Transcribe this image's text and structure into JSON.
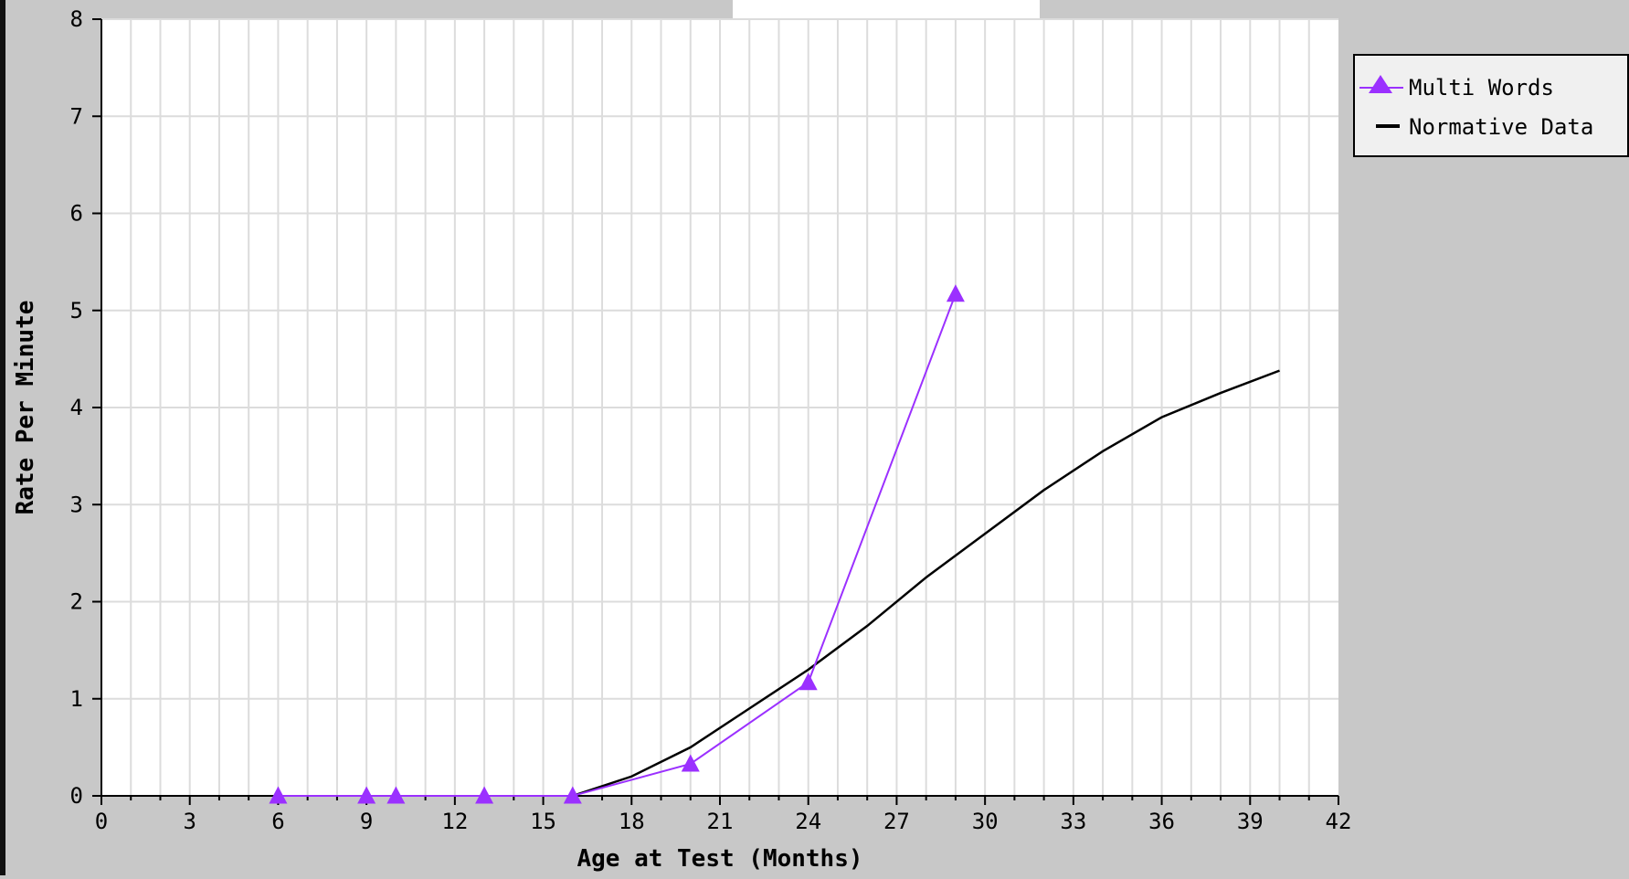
{
  "chart_data": {
    "type": "line",
    "title": "",
    "xlabel": "Age at Test (Months)",
    "ylabel": "Rate Per Minute",
    "xlim": [
      0,
      42
    ],
    "ylim": [
      0,
      8
    ],
    "x_ticks": [
      0,
      3,
      6,
      9,
      12,
      15,
      18,
      21,
      24,
      27,
      30,
      33,
      36,
      39,
      42
    ],
    "y_ticks": [
      0,
      1,
      2,
      3,
      4,
      5,
      6,
      7,
      8
    ],
    "grid": true,
    "legend_position": "top-right, outside plot",
    "series": [
      {
        "name": "Multi Words",
        "color": "#9b30ff",
        "marker": "triangle",
        "x": [
          6,
          9,
          10,
          13,
          16,
          20,
          24,
          29
        ],
        "y": [
          0,
          0,
          0,
          0,
          0,
          0.33,
          1.17,
          5.17
        ]
      },
      {
        "name": "Normative Data",
        "color": "#000000",
        "marker": "none",
        "x": [
          16,
          18,
          20,
          22,
          24,
          26,
          28,
          30,
          32,
          34,
          36,
          38,
          40
        ],
        "y": [
          0,
          0.2,
          0.5,
          0.9,
          1.3,
          1.75,
          2.25,
          2.7,
          3.15,
          3.55,
          3.9,
          4.15,
          4.38
        ]
      }
    ]
  }
}
